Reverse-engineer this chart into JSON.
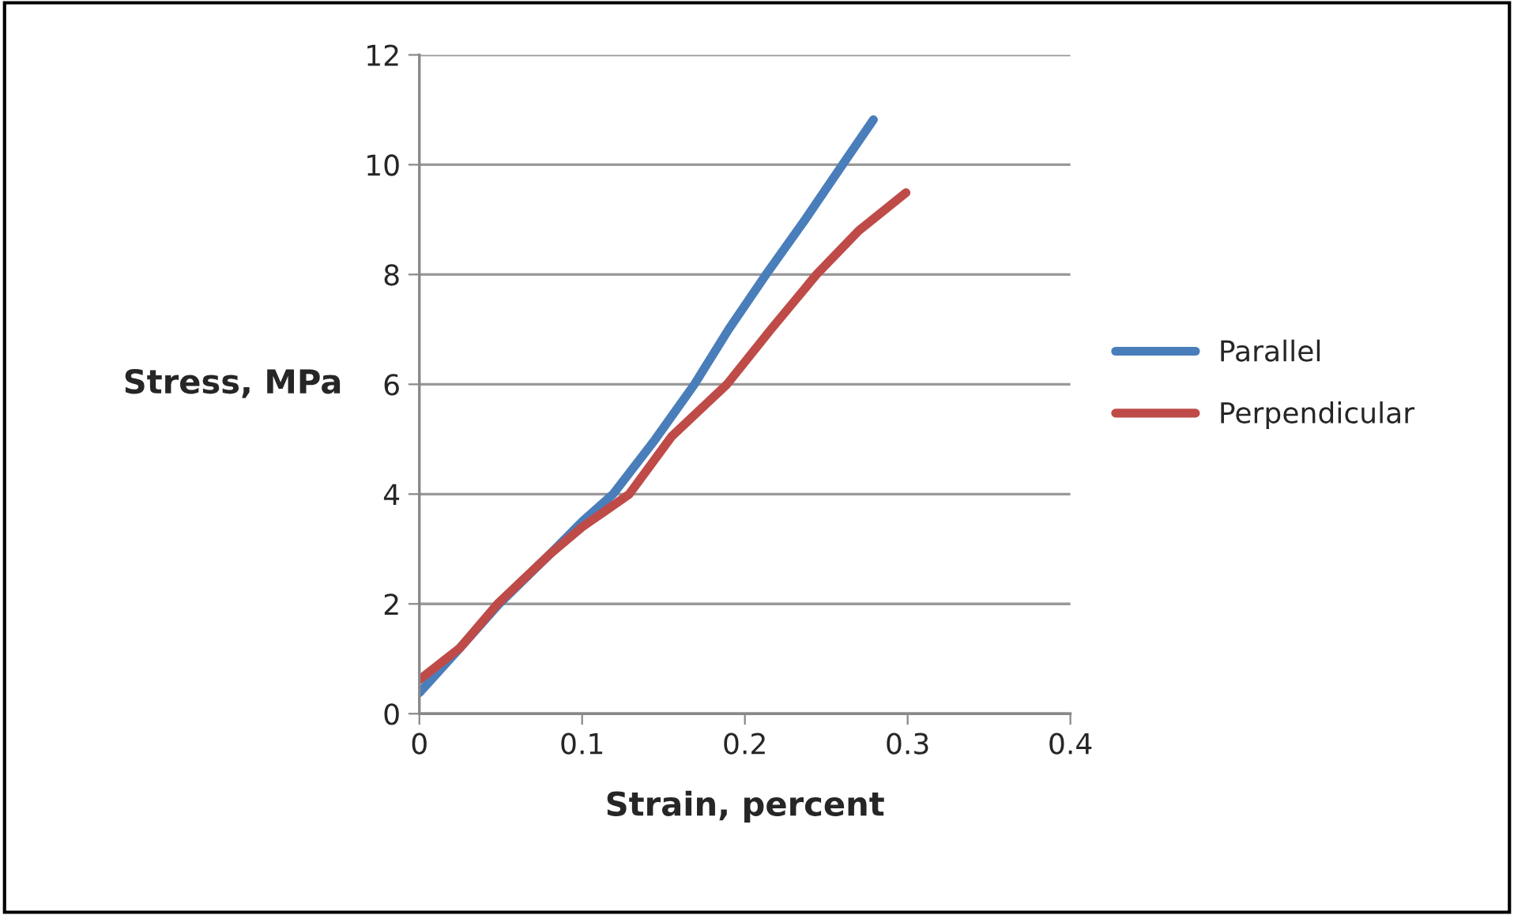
{
  "chart_data": {
    "type": "line",
    "xlabel": "Strain, percent",
    "ylabel": "Stress, MPa",
    "xlim": [
      0,
      0.4
    ],
    "xticks": [
      0,
      0.1,
      0.2,
      0.3,
      0.4
    ],
    "ylim": [
      0,
      12
    ],
    "yticks": [
      0,
      2,
      4,
      6,
      8,
      10,
      12
    ],
    "grid": "y",
    "legend": "right",
    "line_style": "solid",
    "series": [
      {
        "name": "Parallel",
        "color": "#4a7ebb",
        "x": [
          0,
          0.022,
          0.049,
          0.08,
          0.1,
          0.119,
          0.145,
          0.169,
          0.19,
          0.213,
          0.237,
          0.26,
          0.279
        ],
        "values": [
          0.38,
          1.1,
          2.0,
          2.9,
          3.5,
          4.0,
          5.0,
          6.0,
          7.0,
          8.0,
          9.0,
          10.0,
          10.82
        ]
      },
      {
        "name": "Perpendicular",
        "color": "#be4b48",
        "x": [
          0,
          0.025,
          0.048,
          0.08,
          0.1,
          0.129,
          0.155,
          0.189,
          0.216,
          0.244,
          0.27,
          0.299
        ],
        "values": [
          0.62,
          1.2,
          2.0,
          2.9,
          3.4,
          4.0,
          5.05,
          6.0,
          7.0,
          8.0,
          8.8,
          9.49
        ]
      }
    ]
  }
}
